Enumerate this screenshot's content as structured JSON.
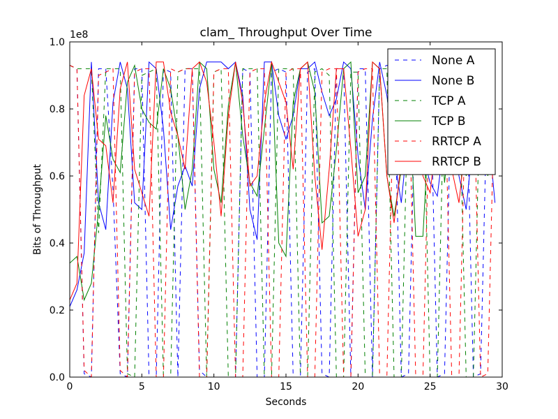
{
  "chart_data": {
    "type": "line",
    "title": "clam_ Throughput Over Time",
    "xlabel": "Seconds",
    "ylabel": "Bits of Throughput",
    "y_offset_text": "1e8",
    "xlim": [
      0,
      30
    ],
    "ylim": [
      0,
      1.0
    ],
    "xticks": [
      0,
      5,
      10,
      15,
      20,
      25,
      30
    ],
    "xtick_labels": [
      "0",
      "5",
      "10",
      "15",
      "20",
      "25",
      "30"
    ],
    "yticks": [
      0.0,
      0.2,
      0.4,
      0.6,
      0.8,
      1.0
    ],
    "ytick_labels": [
      "0.0",
      "0.2",
      "0.4",
      "0.6",
      "0.8",
      "1.0"
    ],
    "grid": false,
    "legend_position": "top-right",
    "x": [
      0,
      0.5,
      1,
      1.5,
      2,
      2.5,
      3,
      3.5,
      4,
      4.5,
      5,
      5.5,
      6,
      6.5,
      7,
      7.5,
      8,
      8.5,
      9,
      9.5,
      10,
      10.5,
      11,
      11.5,
      12,
      12.5,
      13,
      13.5,
      14,
      14.5,
      15,
      15.5,
      16,
      16.5,
      17,
      17.5,
      18,
      18.5,
      19,
      19.5,
      20,
      20.5,
      21,
      21.5,
      22,
      22.5,
      23,
      23.5,
      24,
      24.5,
      25,
      25.5,
      26,
      26.5,
      27,
      27.5,
      28,
      28.5,
      29,
      29.5
    ],
    "series": [
      {
        "name": "None A",
        "color": "#0000ff",
        "dash": true,
        "values": [
          0.93,
          0.92,
          0.01,
          0.0,
          0.92,
          0.92,
          0.56,
          0.01,
          0.0,
          0.92,
          0.92,
          0.0,
          0.0,
          0.92,
          0.91,
          0.0,
          0.92,
          0.92,
          0.02,
          0.0,
          0.0,
          0.0,
          0.0,
          0.0,
          0.92,
          0.91,
          0.0,
          0.0,
          0.91,
          0.92,
          0.91,
          0.0,
          0.0,
          0.91,
          0.92,
          0.01,
          0.0,
          0.92,
          0.92,
          0.0,
          0.92,
          0.92,
          0.0,
          0.92,
          0.93,
          0.92,
          0.0,
          0.01,
          0.92,
          0.93,
          0.92,
          0.0,
          0.01,
          0.92,
          0.92,
          0.93,
          0.0,
          0.01,
          0.92,
          0.92
        ]
      },
      {
        "name": "None B",
        "color": "#0000ff",
        "dash": false,
        "values": [
          0.21,
          0.26,
          0.37,
          0.94,
          0.52,
          0.44,
          0.82,
          0.94,
          0.86,
          0.52,
          0.5,
          0.94,
          0.92,
          0.74,
          0.44,
          0.57,
          0.63,
          0.57,
          0.86,
          0.94,
          0.94,
          0.94,
          0.92,
          0.94,
          0.84,
          0.5,
          0.41,
          0.94,
          0.94,
          0.78,
          0.71,
          0.78,
          0.92,
          0.92,
          0.94,
          0.85,
          0.78,
          0.83,
          0.94,
          0.92,
          0.66,
          0.5,
          0.77,
          0.94,
          0.84,
          0.66,
          0.52,
          0.74,
          0.84,
          0.66,
          0.58,
          0.54,
          0.72,
          0.78,
          0.6,
          0.5,
          0.72,
          0.94,
          0.75,
          0.52
        ]
      },
      {
        "name": "TCP A",
        "color": "#008000",
        "dash": true,
        "values": [
          0.93,
          0.92,
          0.92,
          0.92,
          0.43,
          0.92,
          0.92,
          0.92,
          0.01,
          0.0,
          0.9,
          0.91,
          0.92,
          0.0,
          0.0,
          0.91,
          0.92,
          0.92,
          0.92,
          0.0,
          0.91,
          0.92,
          0.0,
          0.0,
          0.92,
          0.92,
          0.92,
          0.0,
          0.0,
          0.92,
          0.92,
          0.92,
          0.0,
          0.0,
          0.91,
          0.92,
          0.9,
          0.0,
          0.0,
          0.91,
          0.91,
          0.0,
          0.0,
          0.92,
          0.92,
          0.0,
          0.0,
          0.91,
          0.92,
          0.92,
          0.0,
          0.0,
          0.91,
          0.92,
          0.92,
          0.0,
          0.0,
          0.92,
          0.91,
          0.92
        ]
      },
      {
        "name": "TCP B",
        "color": "#008000",
        "dash": false,
        "values": [
          0.34,
          0.36,
          0.23,
          0.28,
          0.5,
          0.78,
          0.65,
          0.61,
          0.88,
          0.93,
          0.8,
          0.76,
          0.74,
          0.92,
          0.86,
          0.72,
          0.5,
          0.62,
          0.94,
          0.92,
          0.62,
          0.52,
          0.81,
          0.94,
          0.72,
          0.58,
          0.54,
          0.74,
          0.94,
          0.4,
          0.36,
          0.82,
          0.92,
          0.94,
          0.85,
          0.46,
          0.48,
          0.68,
          0.92,
          0.94,
          0.55,
          0.6,
          0.94,
          0.92,
          0.6,
          0.48,
          0.62,
          0.86,
          0.42,
          0.42,
          0.82,
          0.94,
          0.58,
          0.78,
          0.86,
          0.6,
          0.78,
          0.94,
          0.6,
          0.94
        ]
      },
      {
        "name": "RRTCP A",
        "color": "#ff0000",
        "dash": true,
        "values": [
          0.93,
          0.92,
          0.02,
          0.0,
          0.9,
          0.91,
          0.92,
          0.02,
          0.0,
          0.91,
          0.92,
          0.92,
          0.0,
          0.0,
          0.92,
          0.91,
          0.92,
          0.92,
          0.0,
          0.0,
          0.91,
          0.92,
          0.92,
          0.0,
          0.0,
          0.91,
          0.92,
          0.92,
          0.0,
          0.0,
          0.91,
          0.92,
          0.92,
          0.0,
          0.0,
          0.91,
          0.92,
          0.92,
          0.0,
          0.0,
          0.91,
          0.92,
          0.92,
          0.0,
          0.0,
          0.91,
          0.92,
          0.92,
          0.0,
          0.0,
          0.91,
          0.92,
          0.92,
          0.0,
          0.0,
          0.91,
          0.92,
          0.0,
          0.01,
          0.92
        ]
      },
      {
        "name": "RRTCP B",
        "color": "#ff0000",
        "dash": false,
        "values": [
          0.23,
          0.28,
          0.84,
          0.92,
          0.71,
          0.69,
          0.52,
          0.86,
          0.94,
          0.62,
          0.55,
          0.48,
          0.94,
          0.94,
          0.79,
          0.72,
          0.62,
          0.92,
          0.94,
          0.88,
          0.7,
          0.48,
          0.78,
          0.94,
          0.82,
          0.57,
          0.6,
          0.82,
          0.94,
          0.88,
          0.82,
          0.62,
          0.92,
          0.94,
          0.6,
          0.38,
          0.62,
          0.92,
          0.92,
          0.68,
          0.42,
          0.5,
          0.94,
          0.92,
          0.6,
          0.46,
          0.64,
          0.94,
          0.88,
          0.6,
          0.55,
          0.74,
          0.94,
          0.62,
          0.52,
          0.72,
          0.94,
          0.78,
          0.8,
          0.92
        ]
      }
    ]
  }
}
